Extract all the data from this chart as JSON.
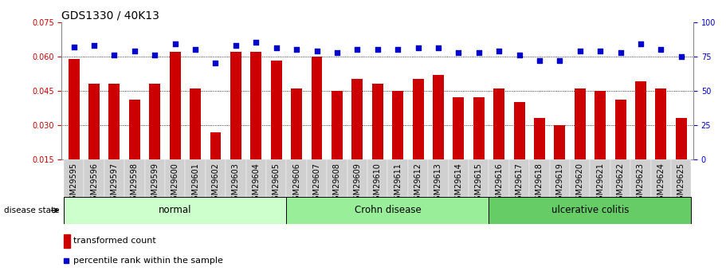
{
  "title": "GDS1330 / 40K13",
  "categories": [
    "GSM29595",
    "GSM29596",
    "GSM29597",
    "GSM29598",
    "GSM29599",
    "GSM29600",
    "GSM29601",
    "GSM29602",
    "GSM29603",
    "GSM29604",
    "GSM29605",
    "GSM29606",
    "GSM29607",
    "GSM29608",
    "GSM29609",
    "GSM29610",
    "GSM29611",
    "GSM29612",
    "GSM29613",
    "GSM29614",
    "GSM29615",
    "GSM29616",
    "GSM29617",
    "GSM29618",
    "GSM29619",
    "GSM29620",
    "GSM29621",
    "GSM29622",
    "GSM29623",
    "GSM29624",
    "GSM29625"
  ],
  "bar_values": [
    0.059,
    0.048,
    0.048,
    0.041,
    0.048,
    0.062,
    0.046,
    0.027,
    0.062,
    0.062,
    0.058,
    0.046,
    0.06,
    0.045,
    0.05,
    0.048,
    0.045,
    0.05,
    0.052,
    0.042,
    0.042,
    0.046,
    0.04,
    0.033,
    0.03,
    0.046,
    0.045,
    0.041,
    0.049,
    0.046,
    0.033
  ],
  "dot_values": [
    82,
    83,
    76,
    79,
    76,
    84,
    80,
    70,
    83,
    85,
    81,
    80,
    79,
    78,
    80,
    80,
    80,
    81,
    81,
    78,
    78,
    79,
    76,
    72,
    72,
    79,
    79,
    78,
    84,
    80,
    75
  ],
  "bar_color": "#cc0000",
  "dot_color": "#0000cc",
  "ylim_left": [
    0.015,
    0.075
  ],
  "ylim_right": [
    0,
    100
  ],
  "yticks_left": [
    0.015,
    0.03,
    0.045,
    0.06,
    0.075
  ],
  "yticks_right": [
    0,
    25,
    50,
    75,
    100
  ],
  "group_boundaries": [
    {
      "label": "normal",
      "start": 0,
      "end": 11,
      "color": "#ccffcc"
    },
    {
      "label": "Crohn disease",
      "start": 11,
      "end": 21,
      "color": "#99ee99"
    },
    {
      "label": "ulcerative colitis",
      "start": 21,
      "end": 31,
      "color": "#66cc66"
    }
  ],
  "xlabel": "disease state",
  "legend_bar_label": "transformed count",
  "legend_dot_label": "percentile rank within the sample",
  "background_color": "#ffffff",
  "title_fontsize": 10,
  "tick_fontsize": 7,
  "label_fontsize": 8,
  "xtick_bg_color": "#d0d0d0"
}
